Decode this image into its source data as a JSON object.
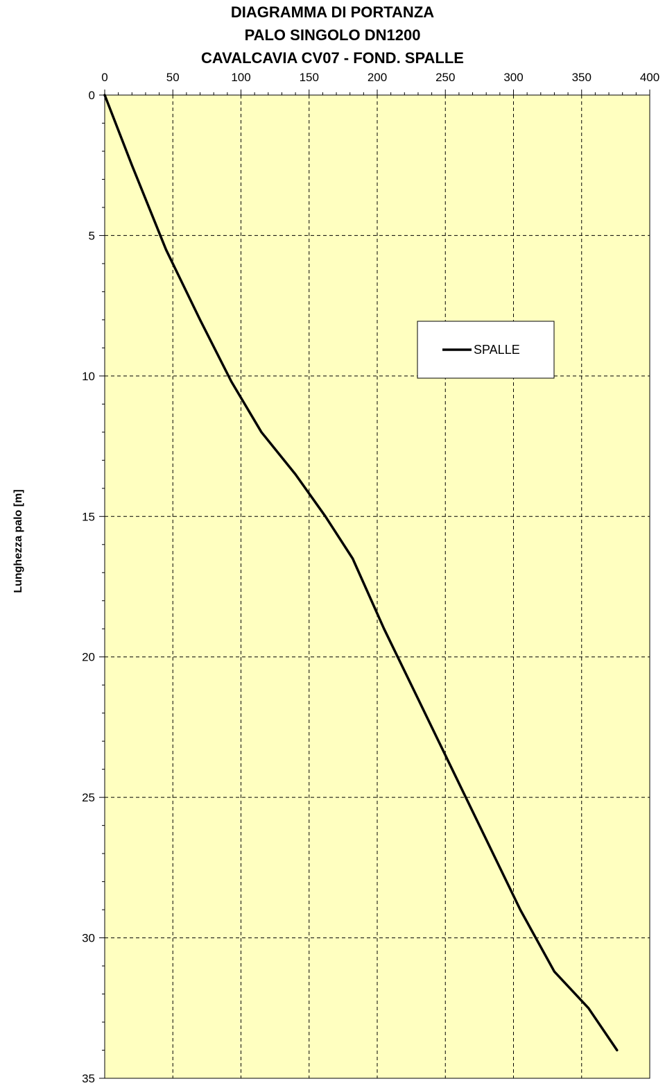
{
  "chart_data": {
    "type": "line",
    "title_lines": [
      "DIAGRAMMA DI PORTANZA",
      "PALO SINGOLO DN1200",
      "CAVALCAVIA CV07 - FOND. SPALLE"
    ],
    "xlabel": "",
    "ylabel": "Lunghezza palo [m]",
    "xlim": [
      0,
      400
    ],
    "ylim": [
      0,
      35
    ],
    "y_inverted": true,
    "x_axis_position": "top",
    "x_ticks": [
      0,
      50,
      100,
      150,
      200,
      250,
      300,
      350,
      400
    ],
    "y_ticks": [
      0,
      5,
      10,
      15,
      20,
      25,
      30,
      35
    ],
    "grid": "dashed",
    "plot_background": "#ffffc0",
    "legend_position": "right-middle",
    "series": [
      {
        "name": "SPALLE",
        "color": "#000000",
        "x": [
          0,
          20,
          45,
          70,
          93,
          115,
          140,
          162,
          182,
          205,
          230,
          255,
          280,
          305,
          330,
          355,
          376
        ],
        "y": [
          0,
          2.5,
          5.5,
          8,
          10.2,
          12,
          13.5,
          15,
          16.5,
          19,
          21.5,
          24,
          26.5,
          29,
          31.2,
          32.5,
          34
        ]
      }
    ]
  }
}
